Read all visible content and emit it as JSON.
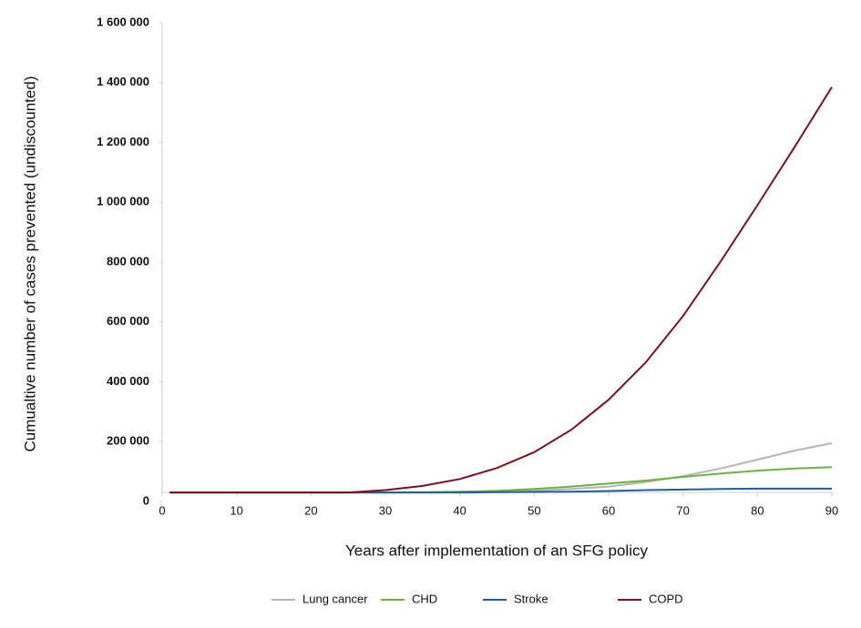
{
  "chart_data": {
    "type": "line",
    "y_label": "Cumualtive number of cases prevented (undiscounted)",
    "x_label": "Years after implementation of an SFG policy",
    "x": [
      1,
      5,
      10,
      15,
      20,
      25,
      30,
      35,
      40,
      45,
      50,
      55,
      60,
      65,
      70,
      75,
      80,
      85,
      90
    ],
    "series": [
      {
        "name": "Lung cancer",
        "color": "#b5b5b5",
        "values": [
          30000,
          30000,
          30000,
          30000,
          30000,
          30000,
          30000,
          30000,
          31000,
          32000,
          36000,
          42000,
          50000,
          65000,
          85000,
          110000,
          140000,
          170000,
          195000
        ]
      },
      {
        "name": "CHD",
        "color": "#6fb043",
        "values": [
          30000,
          30000,
          30000,
          30000,
          30000,
          30000,
          30000,
          31000,
          33000,
          36000,
          42000,
          50000,
          60000,
          70000,
          82000,
          93000,
          103000,
          110000,
          115000
        ]
      },
      {
        "name": "Stroke",
        "color": "#1f5f99",
        "values": [
          30000,
          30000,
          30000,
          30000,
          30000,
          30000,
          30000,
          30000,
          30000,
          31000,
          32000,
          33000,
          35000,
          38000,
          40000,
          42000,
          43000,
          43000,
          43000
        ]
      },
      {
        "name": "COPD",
        "color": "#7d1020",
        "values": [
          30000,
          30000,
          30000,
          30000,
          30000,
          30000,
          38000,
          52000,
          75000,
          112000,
          165000,
          240000,
          340000,
          465000,
          620000,
          800000,
          990000,
          1185000,
          1385000
        ]
      }
    ],
    "xlim": [
      0,
      90
    ],
    "xticks": [
      0,
      10,
      20,
      30,
      40,
      50,
      60,
      70,
      80,
      90
    ],
    "ylim": [
      0,
      1600000
    ],
    "yticks": [
      0,
      {
        "value": 200000,
        "label": "200 000"
      },
      {
        "value": 400000,
        "label": "400 000"
      },
      {
        "value": 600000,
        "label": "600 000"
      },
      {
        "value": 800000,
        "label": "800 000"
      },
      {
        "value": 1000000,
        "label": "1 000 000"
      },
      {
        "value": 1200000,
        "label": "1 200 000"
      },
      {
        "value": 1400000,
        "label": "1 400 000"
      },
      {
        "value": 1600000,
        "label": "1 600 000"
      }
    ],
    "legend": "bottom"
  }
}
